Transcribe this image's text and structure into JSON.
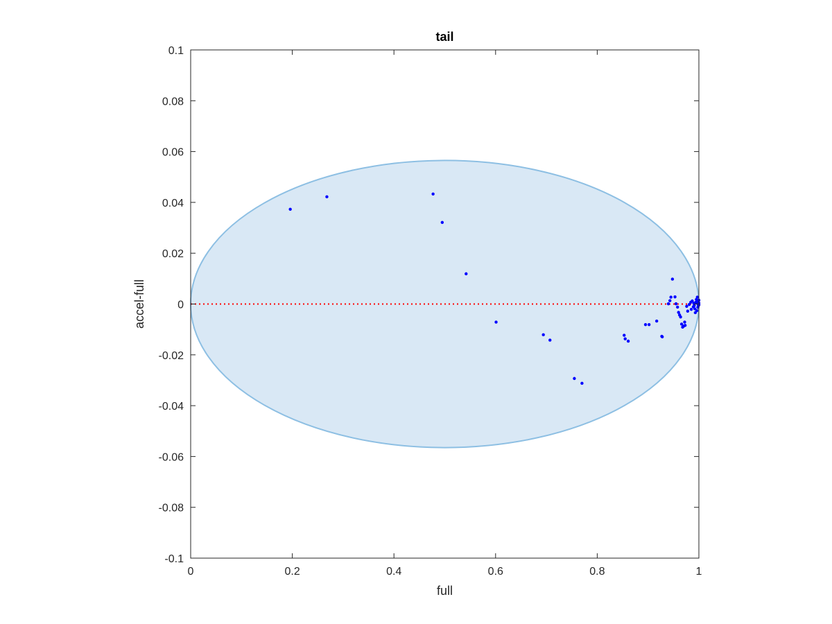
{
  "chart_data": {
    "type": "scatter",
    "title": "tail",
    "xlabel": "full",
    "ylabel": "accel-full",
    "xlim": [
      0,
      1
    ],
    "ylim": [
      -0.1,
      0.1
    ],
    "xticks": [
      0,
      0.2,
      0.4,
      0.6,
      0.8,
      1
    ],
    "xtick_labels": [
      "0",
      "0.2",
      "0.4",
      "0.6",
      "0.8",
      "1"
    ],
    "yticks": [
      -0.1,
      -0.08,
      -0.06,
      -0.04,
      -0.02,
      0,
      0.02,
      0.04,
      0.06,
      0.08,
      0.1
    ],
    "ytick_labels": [
      "-0.1",
      "-0.08",
      "-0.06",
      "-0.04",
      "-0.02",
      "0",
      "0.02",
      "0.04",
      "0.06",
      "0.08",
      "0.1"
    ],
    "grid": false,
    "reference_line": {
      "y": 0,
      "style": "dotted",
      "color": "#ff0000"
    },
    "ellipse": {
      "center": [
        0.5,
        0
      ],
      "x_radius": 0.5,
      "y_radius": 0.0565,
      "fill": "#d9e8f5",
      "stroke": "#8dbfe3"
    },
    "point_color": "#0000ff",
    "points": [
      [
        0.196,
        0.0373
      ],
      [
        0.268,
        0.0422
      ],
      [
        0.477,
        0.0433
      ],
      [
        0.495,
        0.0321
      ],
      [
        0.542,
        0.0119
      ],
      [
        0.601,
        -0.0071
      ],
      [
        0.694,
        -0.0121
      ],
      [
        0.707,
        -0.0142
      ],
      [
        0.755,
        -0.0293
      ],
      [
        0.77,
        -0.0312
      ],
      [
        0.853,
        -0.0123
      ],
      [
        0.855,
        -0.0137
      ],
      [
        0.861,
        -0.0146
      ],
      [
        0.895,
        -0.0081
      ],
      [
        0.902,
        -0.0081
      ],
      [
        0.917,
        -0.0067
      ],
      [
        0.927,
        -0.0127
      ],
      [
        0.928,
        -0.0129
      ],
      [
        0.94,
        0.0001
      ],
      [
        0.943,
        0.0013
      ],
      [
        0.945,
        0.0027
      ],
      [
        0.948,
        0.0098
      ],
      [
        0.953,
        0.0028
      ],
      [
        0.955,
        0.0001
      ],
      [
        0.958,
        -0.0012
      ],
      [
        0.96,
        -0.0033
      ],
      [
        0.962,
        -0.0043
      ],
      [
        0.964,
        -0.0051
      ],
      [
        0.966,
        -0.0079
      ],
      [
        0.968,
        -0.0091
      ],
      [
        0.97,
        -0.0087
      ],
      [
        0.972,
        -0.0071
      ],
      [
        0.973,
        -0.0084
      ],
      [
        0.976,
        -0.0009
      ],
      [
        0.978,
        -0.0028
      ],
      [
        0.981,
        -0.0002
      ],
      [
        0.984,
        0.0007
      ],
      [
        0.985,
        -0.0021
      ],
      [
        0.987,
        0.0012
      ],
      [
        0.989,
        -0.0011
      ],
      [
        0.99,
        0.0003
      ],
      [
        0.991,
        -0.0006
      ],
      [
        0.992,
        -0.0019
      ],
      [
        0.993,
        -0.0034
      ],
      [
        0.994,
        0.0007
      ],
      [
        0.995,
        0.0018
      ],
      [
        0.996,
        -0.0026
      ],
      [
        0.997,
        0.0009
      ],
      [
        0.997,
        0.0027
      ],
      [
        0.998,
        -0.0013
      ],
      [
        0.998,
        0.0001
      ],
      [
        0.999,
        0.0012
      ],
      [
        0.999,
        -0.0007
      ],
      [
        1.0,
        0.0004
      ],
      [
        1.0,
        -0.0003
      ],
      [
        1.0,
        0.0015
      ]
    ]
  }
}
